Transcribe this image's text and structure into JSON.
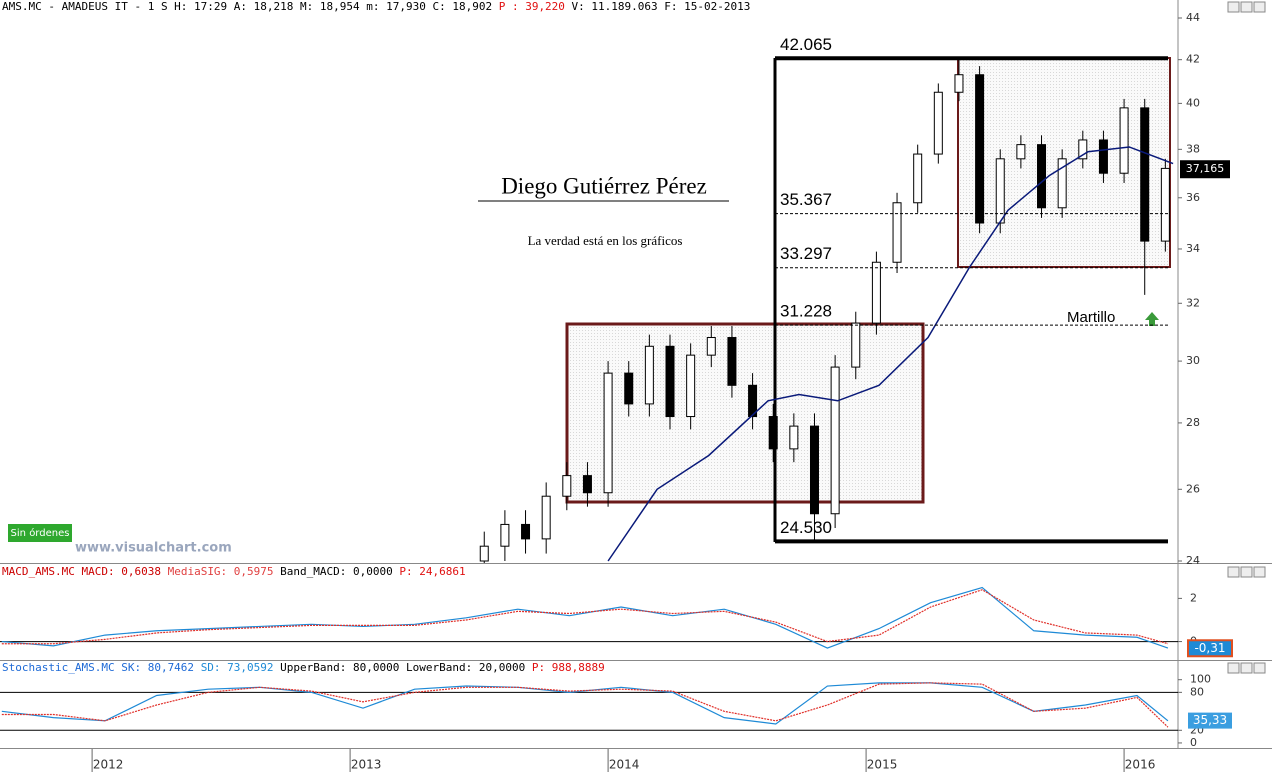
{
  "chart_data": [
    {
      "type": "candlestick",
      "header": [
        "AMS.MC - AMADEUS IT -  1 S H: 17:29 A: 18,218 M: 18,954 m: 17,930 C: 18,902 ",
        "P : 39,220",
        " V: 11.189.063 F: 15-02-2013"
      ],
      "title": "Diego Gutiérrez Pérez",
      "subtitle": "La verdad está en los gráficos",
      "watermark": "www.visualchart.com",
      "status": "Sin órdenes",
      "log_scale": true,
      "xlim": [
        2011.643,
        2016.209
      ],
      "xticks": [
        2012,
        2013,
        2014,
        2015,
        2016
      ],
      "ylim": [
        24,
        44
      ],
      "yticks": [
        24,
        26,
        28,
        30,
        32,
        34,
        36,
        38,
        40,
        42,
        44
      ],
      "x": [
        2013.52,
        2013.6,
        2013.68,
        2013.76,
        2013.84,
        2013.92,
        2014.0,
        2014.08,
        2014.16,
        2014.24,
        2014.32,
        2014.4,
        2014.48,
        2014.56,
        2014.64,
        2014.72,
        2014.8,
        2014.88,
        2014.96,
        2015.04,
        2015.12,
        2015.2,
        2015.28,
        2015.36,
        2015.44,
        2015.52,
        2015.6,
        2015.68,
        2015.76,
        2015.84,
        2015.92,
        2016.0,
        2016.08,
        2016.16
      ],
      "open": [
        24.0,
        24.4,
        25.0,
        24.6,
        25.8,
        26.4,
        25.9,
        29.6,
        28.6,
        30.5,
        28.2,
        30.2,
        30.8,
        29.2,
        28.2,
        27.2,
        27.9,
        25.3,
        29.8,
        31.3,
        33.5,
        35.8,
        37.8,
        40.5,
        41.3,
        35.0,
        37.6,
        38.2,
        35.6,
        37.6,
        38.4,
        37.0,
        39.8,
        34.3
      ],
      "high": [
        24.8,
        25.4,
        25.4,
        26.2,
        26.8,
        26.8,
        30.0,
        30.0,
        30.9,
        30.9,
        30.6,
        31.2,
        31.2,
        29.6,
        28.6,
        28.3,
        28.3,
        30.2,
        31.7,
        33.9,
        36.2,
        38.2,
        40.9,
        42.065,
        41.7,
        38.0,
        38.6,
        38.6,
        38.0,
        38.8,
        38.8,
        40.2,
        40.2,
        37.6
      ],
      "low": [
        23.6,
        24.0,
        24.2,
        24.2,
        25.4,
        25.5,
        25.5,
        28.2,
        28.2,
        27.8,
        27.8,
        29.8,
        28.8,
        27.8,
        26.8,
        26.8,
        24.53,
        24.9,
        29.4,
        30.9,
        33.1,
        35.4,
        37.4,
        40.1,
        34.6,
        34.6,
        37.2,
        35.2,
        35.2,
        37.2,
        36.6,
        36.6,
        32.3,
        33.9
      ],
      "close": [
        24.4,
        25.0,
        24.6,
        25.8,
        26.4,
        25.9,
        29.6,
        28.6,
        30.5,
        28.2,
        30.2,
        30.8,
        29.2,
        28.2,
        27.2,
        27.9,
        25.3,
        29.8,
        31.3,
        33.5,
        35.8,
        37.8,
        40.5,
        41.3,
        35.0,
        37.6,
        38.2,
        35.6,
        37.6,
        38.4,
        37.0,
        39.8,
        34.3,
        37.2
      ],
      "average": {
        "color": "#0a1a7a",
        "x": [
          2014.0,
          2014.19,
          2014.39,
          2014.62,
          2014.74,
          2014.89,
          2015.05,
          2015.24,
          2015.4,
          2015.55,
          2015.71,
          2015.86,
          2016.02,
          2016.19
        ],
        "values": [
          24.0,
          26.0,
          27.0,
          28.7,
          28.9,
          28.7,
          29.2,
          30.8,
          33.3,
          35.5,
          36.9,
          37.9,
          38.1,
          37.4
        ]
      },
      "annotations": [
        {
          "value": 42.065,
          "label": "42.065"
        },
        {
          "value": 35.367,
          "label": "35.367"
        },
        {
          "value": 33.297,
          "label": "33.297"
        },
        {
          "value": 31.228,
          "label": "31.228"
        },
        {
          "value": 24.53,
          "label": "24.530"
        }
      ],
      "note": "Martillo",
      "last_price": {
        "value": 37.165,
        "label": "37,165"
      }
    },
    {
      "type": "line",
      "header": [
        "MACD_AMS.MC MACD: 0,6038 ",
        "MediaSIG: 0,5975 ",
        "Band_MACD: 0,0000 ",
        "P: 24,6861"
      ],
      "ylim": [
        -0.9,
        3.5
      ],
      "yticks": [
        0,
        2
      ],
      "x": [
        2011.65,
        2011.85,
        2012.05,
        2012.25,
        2012.45,
        2012.65,
        2012.85,
        2013.05,
        2013.25,
        2013.45,
        2013.65,
        2013.85,
        2014.05,
        2014.25,
        2014.45,
        2014.65,
        2014.85,
        2015.05,
        2015.25,
        2015.45,
        2015.65,
        2015.85,
        2016.05,
        2016.17
      ],
      "series": [
        {
          "name": "MACD",
          "color": "#1e8ad6",
          "values": [
            0,
            -0.2,
            0.3,
            0.5,
            0.6,
            0.7,
            0.8,
            0.7,
            0.8,
            1.1,
            1.5,
            1.2,
            1.6,
            1.2,
            1.5,
            0.8,
            -0.3,
            0.6,
            1.8,
            2.5,
            0.5,
            0.3,
            0.2,
            -0.3
          ]
        },
        {
          "name": "MediaSIG",
          "color": "#e0302a",
          "values": [
            -0.1,
            -0.1,
            0.1,
            0.4,
            0.55,
            0.65,
            0.75,
            0.75,
            0.75,
            1.0,
            1.4,
            1.3,
            1.5,
            1.3,
            1.4,
            0.9,
            0,
            0.3,
            1.6,
            2.4,
            1.0,
            0.4,
            0.3,
            -0.1
          ]
        }
      ],
      "last_value": {
        "value": -0.31,
        "label": "-0,31"
      }
    },
    {
      "type": "line",
      "header": [
        "Stochastic_AMS.MC SK: 80,7462 ",
        "SD: 73,0592 ",
        "UpperBand: 80,0000 LowerBand: 20,0000 ",
        "P: 988,8889"
      ],
      "ylim": [
        -8,
        128
      ],
      "yticks": [
        0,
        20,
        80,
        100
      ],
      "bands": [
        20,
        80
      ],
      "x": [
        2011.65,
        2011.85,
        2012.05,
        2012.25,
        2012.45,
        2012.65,
        2012.85,
        2013.05,
        2013.25,
        2013.45,
        2013.65,
        2013.85,
        2014.05,
        2014.25,
        2014.45,
        2014.65,
        2014.85,
        2015.05,
        2015.25,
        2015.45,
        2015.65,
        2015.85,
        2016.05,
        2016.17
      ],
      "series": [
        {
          "name": "SK",
          "color": "#1e8ad6",
          "values": [
            50,
            40,
            35,
            75,
            85,
            88,
            80,
            55,
            85,
            90,
            88,
            80,
            88,
            80,
            40,
            30,
            90,
            95,
            95,
            88,
            50,
            60,
            75,
            35
          ]
        },
        {
          "name": "SD",
          "color": "#e0302a",
          "values": [
            45,
            45,
            35,
            60,
            80,
            88,
            82,
            65,
            80,
            88,
            88,
            82,
            85,
            82,
            50,
            35,
            60,
            93,
            95,
            93,
            50,
            55,
            72,
            25
          ]
        }
      ],
      "last_value": {
        "value": 35.33,
        "label": "35,33"
      }
    }
  ]
}
